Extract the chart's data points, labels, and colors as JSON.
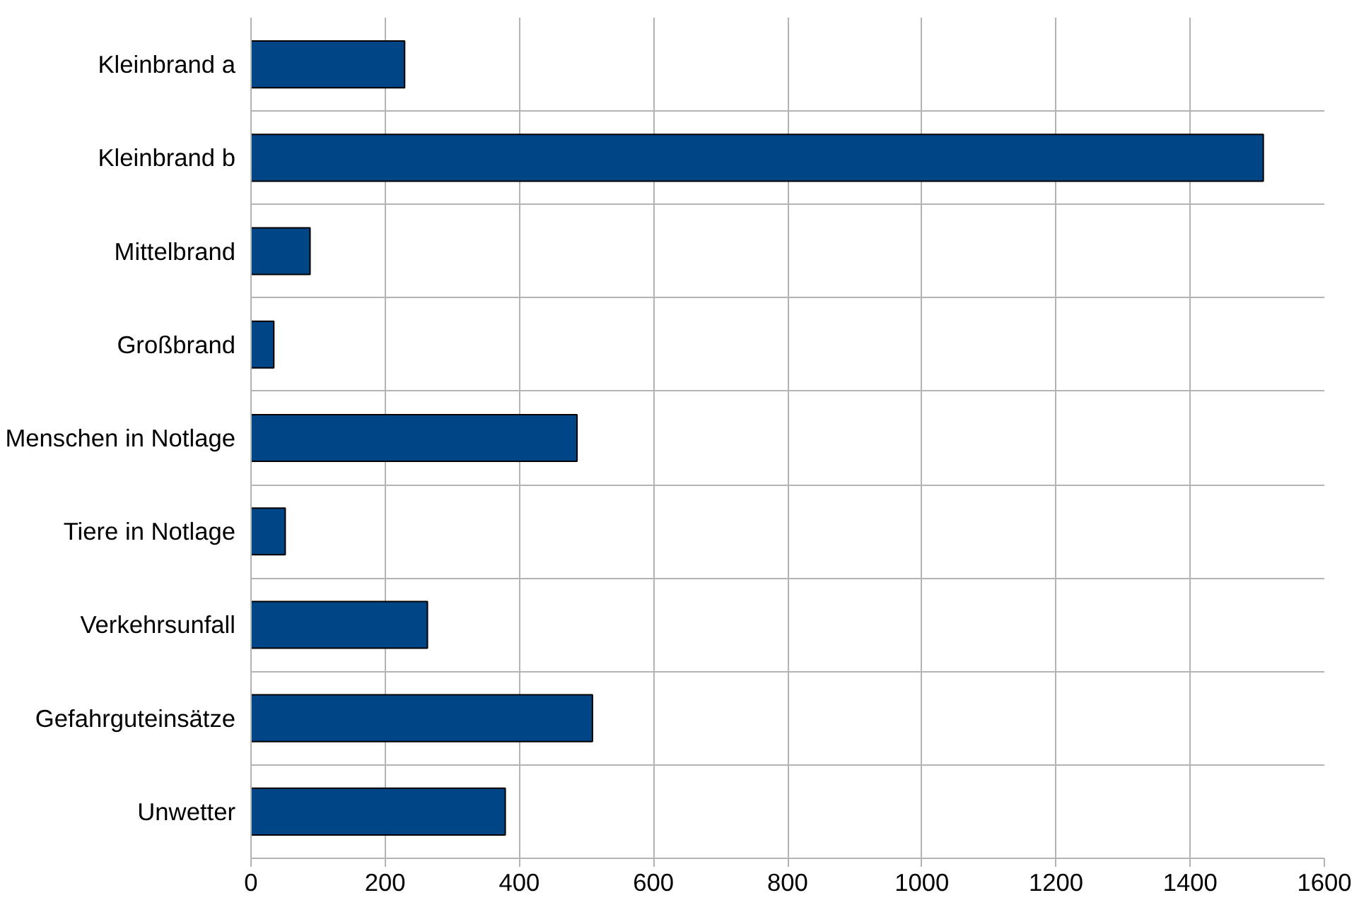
{
  "chart_data": {
    "type": "bar",
    "orientation": "horizontal",
    "categories": [
      "Kleinbrand a",
      "Kleinbrand b",
      "Mittelbrand",
      "Großbrand",
      "Menschen in Notlage",
      "Tiere in Notlage",
      "Verkehrsunfall",
      "Gefahrguteinsätze",
      "Unwetter"
    ],
    "values": [
      229,
      1509,
      88,
      34,
      486,
      51,
      263,
      509,
      379
    ],
    "color": "#004586",
    "xlim": [
      0,
      1600
    ],
    "xticks": [
      0,
      200,
      400,
      600,
      800,
      1000,
      1200,
      1400,
      1600
    ],
    "grid": true
  }
}
